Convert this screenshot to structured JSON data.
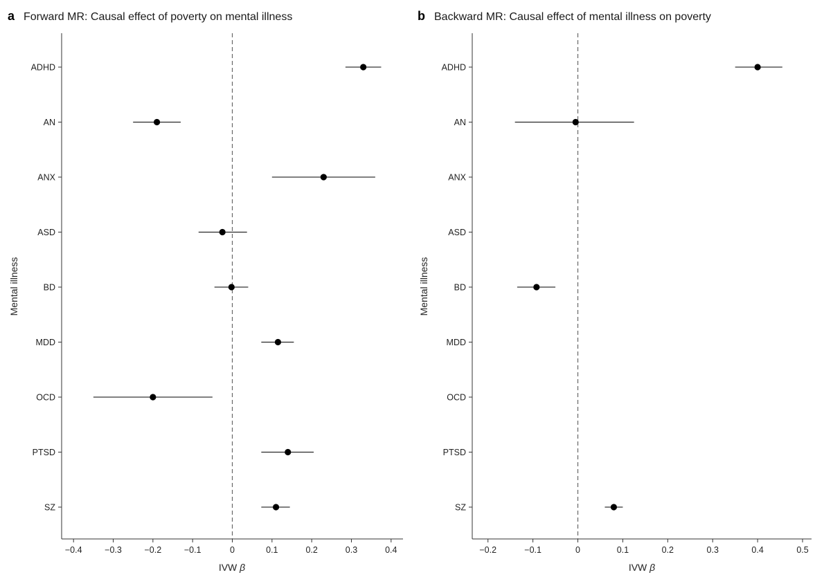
{
  "chart_data": [
    {
      "type": "forest",
      "panel_letter": "a",
      "title": "Forward MR: Causal effect of poverty on mental illness",
      "xlabel": "IVW",
      "xlabel_symbol": "β",
      "ylabel": "Mental illness",
      "xlim": [
        -0.43,
        0.43
      ],
      "xticks": [
        -0.4,
        -0.3,
        -0.2,
        -0.1,
        0,
        0.1,
        0.2,
        0.3,
        0.4
      ],
      "xtick_labels": [
        "−0.4",
        "−0.3",
        "−0.2",
        "−0.1",
        "0",
        "0.1",
        "0.2",
        "0.3",
        "0.4"
      ],
      "reference_line": 0,
      "categories": [
        "ADHD",
        "AN",
        "ANX",
        "ASD",
        "BD",
        "MDD",
        "OCD",
        "PTSD",
        "SZ"
      ],
      "points": [
        {
          "label": "ADHD",
          "beta": 0.33,
          "lower": 0.285,
          "upper": 0.375
        },
        {
          "label": "AN",
          "beta": -0.19,
          "lower": -0.25,
          "upper": -0.13
        },
        {
          "label": "ANX",
          "beta": 0.23,
          "lower": 0.1,
          "upper": 0.36
        },
        {
          "label": "ASD",
          "beta": -0.025,
          "lower": -0.085,
          "upper": 0.037
        },
        {
          "label": "BD",
          "beta": -0.002,
          "lower": -0.045,
          "upper": 0.04
        },
        {
          "label": "MDD",
          "beta": 0.115,
          "lower": 0.073,
          "upper": 0.155
        },
        {
          "label": "OCD",
          "beta": -0.2,
          "lower": -0.35,
          "upper": -0.05
        },
        {
          "label": "PTSD",
          "beta": 0.14,
          "lower": 0.073,
          "upper": 0.205
        },
        {
          "label": "SZ",
          "beta": 0.11,
          "lower": 0.073,
          "upper": 0.145
        }
      ]
    },
    {
      "type": "forest",
      "panel_letter": "b",
      "title": "Backward MR: Causal effect of mental illness on poverty",
      "xlabel": "IVW",
      "xlabel_symbol": "β",
      "ylabel": "Mental illness",
      "xlim": [
        -0.235,
        0.52
      ],
      "xticks": [
        -0.2,
        -0.1,
        0,
        0.1,
        0.2,
        0.3,
        0.4,
        0.5
      ],
      "xtick_labels": [
        "−0.2",
        "−0.1",
        "0",
        "0.1",
        "0.2",
        "0.3",
        "0.4",
        "0.5"
      ],
      "reference_line": 0,
      "categories": [
        "ADHD",
        "AN",
        "ANX",
        "ASD",
        "BD",
        "MDD",
        "OCD",
        "PTSD",
        "SZ"
      ],
      "points": [
        {
          "label": "ADHD",
          "beta": 0.4,
          "lower": 0.35,
          "upper": 0.455
        },
        {
          "label": "AN",
          "beta": -0.005,
          "lower": -0.14,
          "upper": 0.125
        },
        {
          "label": "BD",
          "beta": -0.092,
          "lower": -0.135,
          "upper": -0.05
        },
        {
          "label": "SZ",
          "beta": 0.08,
          "lower": 0.06,
          "upper": 0.1
        }
      ]
    }
  ]
}
